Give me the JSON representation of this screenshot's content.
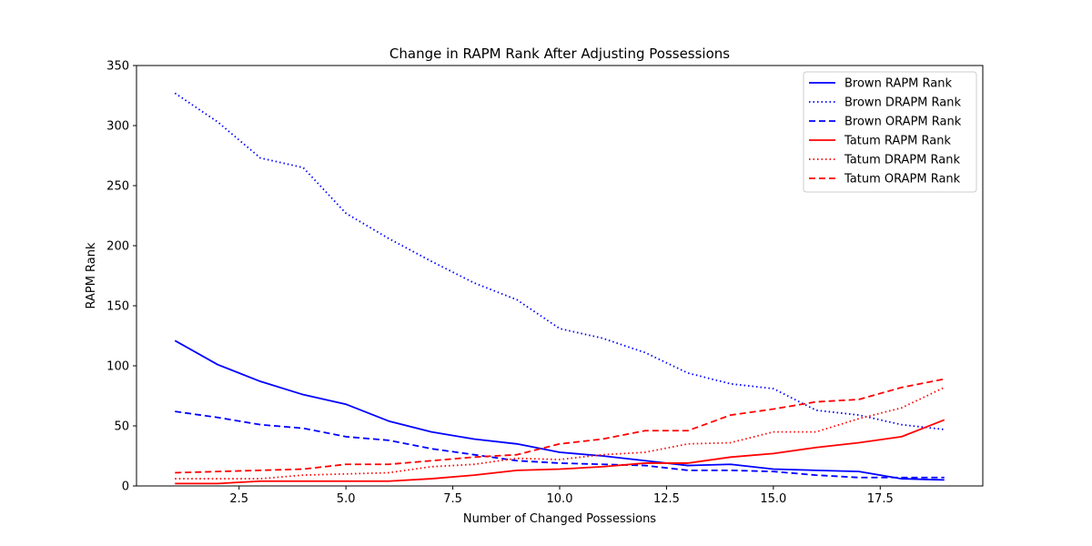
{
  "chart_data": {
    "type": "line",
    "title": "Change in RAPM  Rank After Adjusting Possessions",
    "xlabel": "Number of Changed Possessions",
    "ylabel": "RAPM  Rank",
    "xlim": [
      0.1,
      19.9
    ],
    "ylim": [
      0,
      350
    ],
    "x_ticks": [
      2.5,
      5.0,
      7.5,
      10.0,
      12.5,
      15.0,
      17.5
    ],
    "x_tick_labels": [
      "2.5",
      "5.0",
      "7.5",
      "10.0",
      "12.5",
      "15.0",
      "17.5"
    ],
    "y_ticks": [
      0,
      50,
      100,
      150,
      200,
      250,
      300,
      350
    ],
    "y_tick_labels": [
      "0",
      "50",
      "100",
      "150",
      "200",
      "250",
      "300",
      "350"
    ],
    "grid": false,
    "legend_position": "top-right",
    "x": [
      1,
      2,
      3,
      4,
      5,
      6,
      7,
      8,
      9,
      10,
      11,
      12,
      13,
      14,
      15,
      16,
      17,
      18,
      19
    ],
    "series": [
      {
        "name": "Brown RAPM Rank",
        "color": "#0000ff",
        "style": "solid",
        "values": [
          121,
          101,
          87,
          76,
          68,
          54,
          45,
          39,
          35,
          28,
          25,
          21,
          17,
          18,
          14,
          13,
          12,
          6,
          5
        ]
      },
      {
        "name": "Brown DRAPM Rank",
        "color": "#0000ff",
        "style": "dotted",
        "values": [
          327,
          303,
          273,
          265,
          227,
          206,
          187,
          169,
          155,
          131,
          123,
          111,
          94,
          85,
          81,
          63,
          59,
          51,
          47
        ]
      },
      {
        "name": "Brown ORAPM Rank",
        "color": "#0000ff",
        "style": "dashed",
        "values": [
          62,
          57,
          51,
          48,
          41,
          38,
          31,
          26,
          21,
          19,
          18,
          17,
          13,
          13,
          12,
          9,
          7,
          7,
          7
        ]
      },
      {
        "name": "Tatum RAPM Rank",
        "color": "#ff0000",
        "style": "solid",
        "values": [
          2,
          2,
          4,
          4,
          4,
          4,
          6,
          9,
          13,
          14,
          16,
          19,
          19,
          24,
          27,
          32,
          36,
          41,
          55
        ]
      },
      {
        "name": "Tatum DRAPM Rank",
        "color": "#ff0000",
        "style": "dotted",
        "values": [
          6,
          6,
          6,
          9,
          10,
          11,
          16,
          18,
          23,
          22,
          26,
          28,
          35,
          36,
          45,
          45,
          56,
          65,
          82
        ]
      },
      {
        "name": "Tatum ORAPM Rank",
        "color": "#ff0000",
        "style": "dashed",
        "values": [
          11,
          12,
          13,
          14,
          18,
          18,
          21,
          24,
          26,
          35,
          39,
          46,
          46,
          59,
          64,
          70,
          72,
          82,
          89
        ]
      }
    ]
  }
}
